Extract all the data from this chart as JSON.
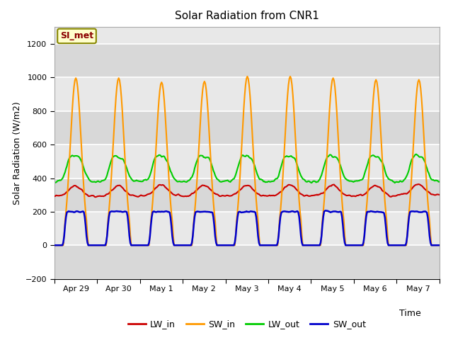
{
  "title": "Solar Radiation from CNR1",
  "xlabel": "Time",
  "ylabel": "Solar Radiation (W/m2)",
  "ylim": [
    -200,
    1300
  ],
  "yticks": [
    -200,
    0,
    200,
    400,
    600,
    800,
    1000,
    1200
  ],
  "date_labels": [
    "Apr 29",
    "Apr 30",
    "May 1",
    "May 2",
    "May 3",
    "May 4",
    "May 5",
    "May 6",
    "May 7"
  ],
  "bg_color": "#e8e8e8",
  "grid_color": "#ffffff",
  "annotation_text": "SI_met",
  "annotation_bg": "#ffffcc",
  "annotation_border": "#999900",
  "colors": {
    "LW_in": "#cc0000",
    "SW_in": "#ff9900",
    "LW_out": "#00cc00",
    "SW_out": "#0000cc"
  },
  "legend_labels": [
    "LW_in",
    "SW_in",
    "LW_out",
    "SW_out"
  ],
  "n_days": 9,
  "pts_per_day": 48,
  "sw_peaks": [
    1000,
    1000,
    975,
    980,
    1010,
    1010,
    1000,
    990,
    990
  ],
  "sw_out_peak": 200,
  "lw_in_base": 295,
  "lw_out_base": 380
}
